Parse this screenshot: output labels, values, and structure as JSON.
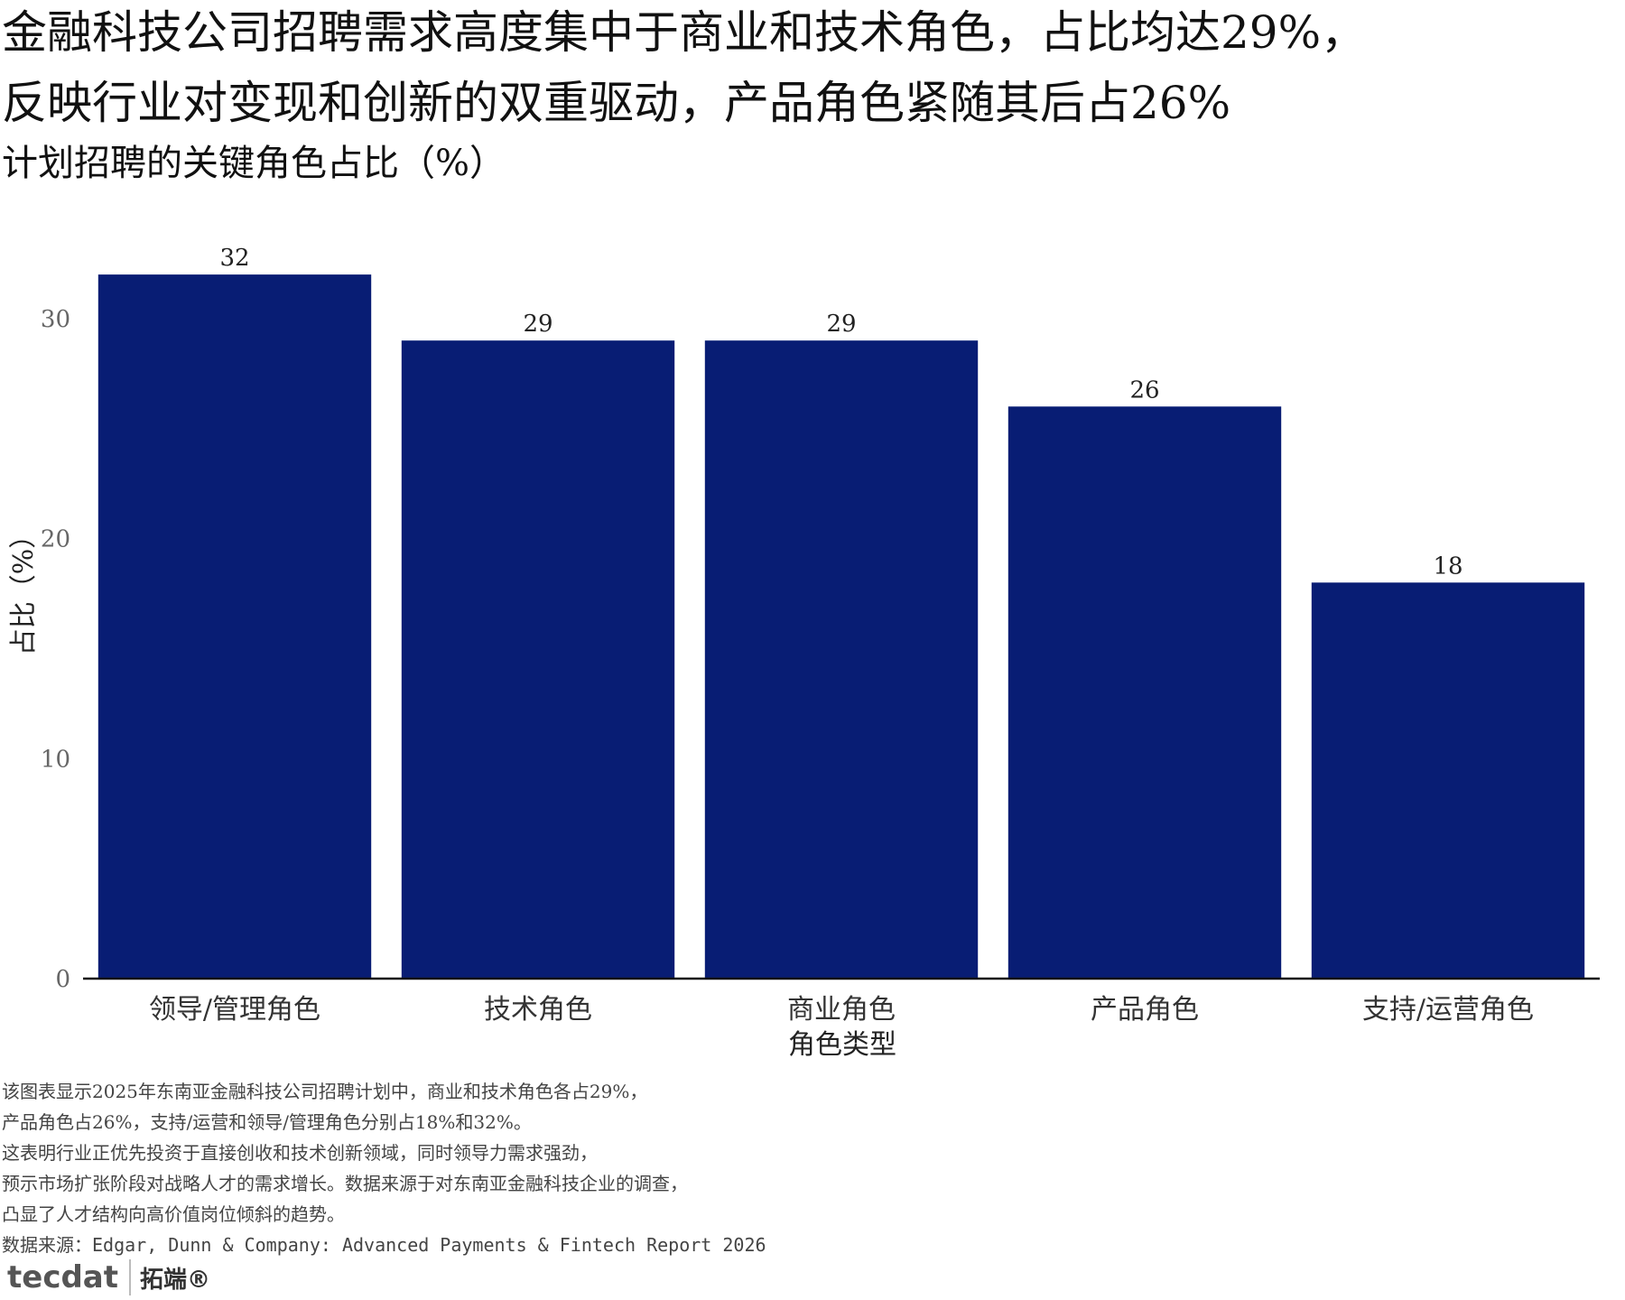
{
  "title_lines": [
    "金融科技公司招聘需求高度集中于商业和技术角色，占比均达29%，",
    "反映行业对变现和创新的双重驱动，产品角色紧随其后占26%"
  ],
  "subtitle": "计划招聘的关键角色占比（%）",
  "chart_data": {
    "type": "bar",
    "categories": [
      "领导/管理角色",
      "技术角色",
      "商业角色",
      "产品角色",
      "支持/运营角色"
    ],
    "values": [
      32,
      29,
      29,
      26,
      18
    ],
    "data_labels": [
      "32",
      "29",
      "29",
      "26",
      "18"
    ],
    "xlabel": "角色类型",
    "ylabel": "占比（%）",
    "yticks": [
      0,
      10,
      20,
      30
    ],
    "ytick_labels": [
      "0",
      "10",
      "20",
      "30"
    ],
    "ylim": [
      0,
      34.3
    ],
    "grid": false,
    "bar_color": "#081d74"
  },
  "notes": [
    "该图表显示2025年东南亚金融科技公司招聘计划中，商业和技术角色各占29%，",
    "产品角色占26%，支持/运营和领导/管理角色分别占18%和32%。",
    "这表明行业正优先投资于直接创收和技术创新领域，同时领导力需求强劲，",
    "预示市场扩张阶段对战略人才的需求增长。数据来源于对东南亚金融科技企业的调查，",
    "凸显了人才结构向高价值岗位倾斜的趋势。"
  ],
  "source": "数据来源：Edgar, Dunn & Company: Advanced Payments & Fintech Report 2026",
  "logo": {
    "mark": "tecdat",
    "name": "拓端®"
  }
}
